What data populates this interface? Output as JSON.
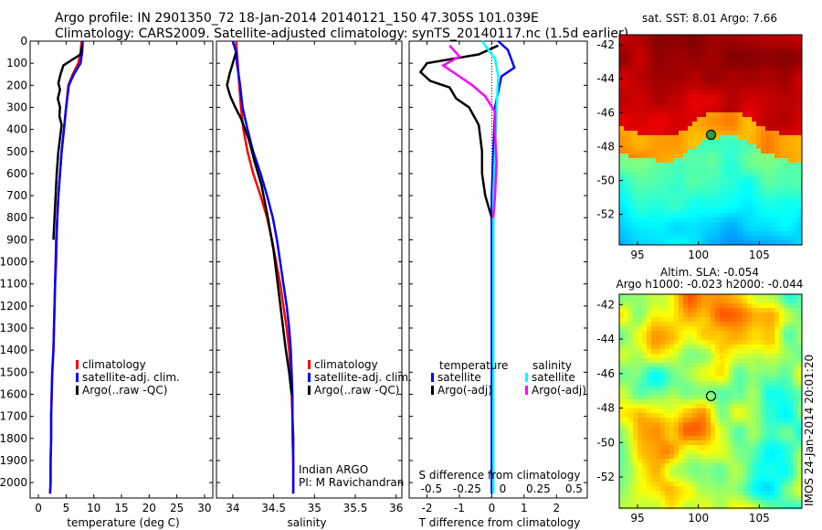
{
  "header": {
    "title_line1": "Argo profile: IN 2901350_72 18-Jan-2014 20140121_150 47.305S 101.039E",
    "title_line2": "Climatology: CARS2009. Satellite-adjusted climatology: synTS_20140117.nc (1.5d earlier)"
  },
  "colors": {
    "climatology": "#ff0000",
    "satellite": "#0000ff",
    "argo": "#000000",
    "salinity_satellite": "#00ffff",
    "salinity_argo": "#ff00ff"
  },
  "chart_data": [
    {
      "type": "line",
      "xlabel": "temperature (deg C)",
      "xticks": [
        0,
        5,
        10,
        15,
        20,
        25,
        30
      ],
      "xlim": [
        -1.5,
        31.5
      ],
      "ylim": [
        2070,
        0
      ],
      "yticks": [
        0,
        100,
        200,
        300,
        400,
        500,
        600,
        700,
        800,
        900,
        1000,
        1100,
        1200,
        1300,
        1400,
        1500,
        1600,
        1700,
        1800,
        1900,
        2000
      ],
      "legend": {
        "placement": "lower-left",
        "entries": [
          "climatology",
          "satellite-adj. clim.",
          "Argo(..raw -QC)"
        ]
      },
      "series": [
        {
          "name": "climatology",
          "color": "#ff0000",
          "x": [
            7.8,
            7.6,
            7.2,
            6.2,
            5.4,
            5.0,
            4.6,
            4.2,
            3.9,
            3.6,
            3.4,
            3.3,
            3.2,
            3.0,
            2.9,
            2.8,
            2.7,
            2.5,
            2.4,
            2.3,
            2.3,
            2.2,
            2.2,
            2.1
          ],
          "y": [
            0,
            50,
            100,
            150,
            200,
            300,
            400,
            500,
            600,
            700,
            800,
            900,
            1000,
            1100,
            1200,
            1300,
            1400,
            1500,
            1600,
            1700,
            1800,
            1900,
            2000,
            2050
          ]
        },
        {
          "name": "satellite-adj. clim.",
          "color": "#0000ff",
          "x": [
            8.0,
            7.9,
            7.6,
            6.4,
            5.5,
            5.0,
            4.6,
            4.2,
            3.9,
            3.6,
            3.4,
            3.2,
            3.1,
            3.0,
            2.9,
            2.8,
            2.7,
            2.5,
            2.4,
            2.3,
            2.3,
            2.2,
            2.2,
            2.1
          ],
          "y": [
            0,
            50,
            100,
            150,
            200,
            300,
            400,
            500,
            600,
            700,
            800,
            900,
            1000,
            1100,
            1200,
            1300,
            1400,
            1500,
            1600,
            1700,
            1800,
            1900,
            2000,
            2050
          ]
        },
        {
          "name": "Argo(..raw -QC)",
          "color": "#000000",
          "x": [
            7.9,
            7.6,
            4.5,
            4.0,
            3.6,
            3.9,
            3.5,
            3.9,
            3.8,
            4.2,
            4.0,
            3.6,
            3.3,
            3.1,
            2.9,
            2.7
          ],
          "y": [
            20,
            60,
            110,
            150,
            190,
            220,
            260,
            300,
            340,
            380,
            420,
            500,
            600,
            700,
            800,
            900
          ]
        }
      ]
    },
    {
      "type": "line",
      "xlabel": "salinity",
      "xticks": [
        34,
        34.5,
        35,
        35.5,
        36
      ],
      "xlim": [
        33.8,
        36.07
      ],
      "ylim": [
        2070,
        0
      ],
      "legend": {
        "placement": "lower-right",
        "entries": [
          "climatology",
          "satellite-adj. clim.",
          "Argo(..raw -QC)"
        ]
      },
      "annotations": [
        "Indian ARGO",
        "PI: M Ravichandran"
      ],
      "series": [
        {
          "name": "climatology",
          "color": "#ff0000",
          "x": [
            34.04,
            34.06,
            34.08,
            34.1,
            34.13,
            34.18,
            34.25,
            34.34,
            34.42,
            34.48,
            34.53,
            34.58,
            34.62,
            34.66,
            34.69,
            34.71,
            34.72,
            34.73,
            34.73,
            34.74,
            34.74,
            34.74,
            34.74
          ],
          "y": [
            0,
            100,
            200,
            300,
            400,
            500,
            600,
            700,
            800,
            900,
            1000,
            1100,
            1200,
            1300,
            1400,
            1500,
            1600,
            1700,
            1800,
            1900,
            2000,
            2050,
            2050
          ]
        },
        {
          "name": "satellite-adj. clim.",
          "color": "#0000ff",
          "x": [
            34.0,
            34.04,
            34.05,
            34.09,
            34.12,
            34.18,
            34.25,
            34.34,
            34.42,
            34.49,
            34.54,
            34.58,
            34.62,
            34.66,
            34.69,
            34.71,
            34.72,
            34.73,
            34.73,
            34.74,
            34.74,
            34.74
          ],
          "y": [
            0,
            50,
            100,
            200,
            300,
            400,
            500,
            600,
            700,
            800,
            900,
            1000,
            1100,
            1200,
            1300,
            1400,
            1500,
            1600,
            1700,
            1800,
            1900,
            2050
          ]
        },
        {
          "name": "Argo(..raw -QC)",
          "color": "#000000",
          "x": [
            34.04,
            33.96,
            33.93,
            33.97,
            34.03,
            34.1,
            34.15,
            34.2,
            34.27,
            34.35,
            34.43,
            34.5,
            34.55,
            34.6,
            34.65,
            34.69,
            34.72
          ],
          "y": [
            50,
            150,
            200,
            250,
            300,
            350,
            400,
            450,
            550,
            650,
            800,
            950,
            1100,
            1250,
            1400,
            1500,
            1600
          ]
        }
      ]
    },
    {
      "type": "line",
      "xlabel": "T difference from climatology",
      "xticks": [
        -2,
        -1,
        0,
        1,
        2
      ],
      "xlim": [
        -2.55,
        2.95
      ],
      "x2label": "S difference from climatology",
      "x2ticks": [
        "-0.5",
        "-0.25",
        "0",
        "0.25",
        "0.5"
      ],
      "ylim": [
        2070,
        0
      ],
      "legend": {
        "placement": "lower",
        "temperature_title": "temperature",
        "salinity_title": "salinity",
        "entries": [
          "satellite",
          "Argo(-adj)",
          "satellite",
          "Argo(-adj)"
        ]
      },
      "series": [
        {
          "name": "satellite",
          "color": "#0000ff",
          "x": [
            0.2,
            0.5,
            0.7,
            0.3,
            0.1,
            0.05,
            0.0,
            0.0,
            0.0,
            0.0,
            0.0,
            0.0,
            0.0,
            0.0,
            0.0
          ],
          "y": [
            0,
            40,
            120,
            160,
            300,
            500,
            700,
            900,
            1100,
            1300,
            1500,
            1700,
            1900,
            2050,
            2050
          ]
        },
        {
          "name": "Argo(-adj)",
          "color": "#000000",
          "x": [
            0.2,
            -0.4,
            -2.0,
            -2.2,
            -1.9,
            -1.3,
            -1.1,
            -0.7,
            -0.4,
            -0.3,
            -0.3,
            -0.2,
            0.0
          ],
          "y": [
            20,
            60,
            100,
            140,
            180,
            210,
            260,
            300,
            380,
            500,
            600,
            700,
            800
          ]
        },
        {
          "name": "satellite (salinity)",
          "color": "#00ffff",
          "x": [
            -0.3,
            -0.1,
            0.1,
            0.2,
            0.15,
            0.1,
            0.05,
            0.05,
            0.05,
            0.05,
            0.05,
            0.05,
            0.05,
            0.05
          ],
          "y": [
            0,
            40,
            80,
            160,
            300,
            500,
            700,
            900,
            1100,
            1300,
            1500,
            1700,
            1900,
            2050
          ]
        },
        {
          "name": "Argo(-adj) (salinity)",
          "color": "#ff00ff",
          "x": [
            -1.3,
            -1.0,
            -1.5,
            -1.0,
            -0.6,
            -0.2,
            0.1,
            0.1,
            0.15,
            0.1,
            0.05
          ],
          "y": [
            20,
            70,
            110,
            160,
            200,
            250,
            320,
            420,
            550,
            700,
            800
          ]
        }
      ]
    },
    {
      "type": "heatmap",
      "title": "sat. SST: 8.01  Argo: 7.66",
      "xticks": [
        95,
        100,
        105
      ],
      "yticks": [
        -42,
        -44,
        -46,
        -48,
        -50,
        -52
      ],
      "xlim": [
        93.5,
        108.5
      ],
      "ylim": [
        -53.8,
        -41.4
      ],
      "marker": {
        "lon": 101.039,
        "lat": -47.305
      }
    },
    {
      "type": "heatmap",
      "title": "Altim. SLA: -0.054",
      "subtitle": "Argo h1000: -0.023 h2000: -0.044",
      "xticks": [
        95,
        100,
        105
      ],
      "yticks": [
        -42,
        -44,
        -46,
        -48,
        -50,
        -52
      ],
      "xlim": [
        93.5,
        108.5
      ],
      "ylim": [
        -53.8,
        -41.4
      ],
      "marker": {
        "lon": 101.039,
        "lat": -47.305
      }
    }
  ],
  "footer_stamp": "IMOS 24-Jan-2014 20:01:20"
}
